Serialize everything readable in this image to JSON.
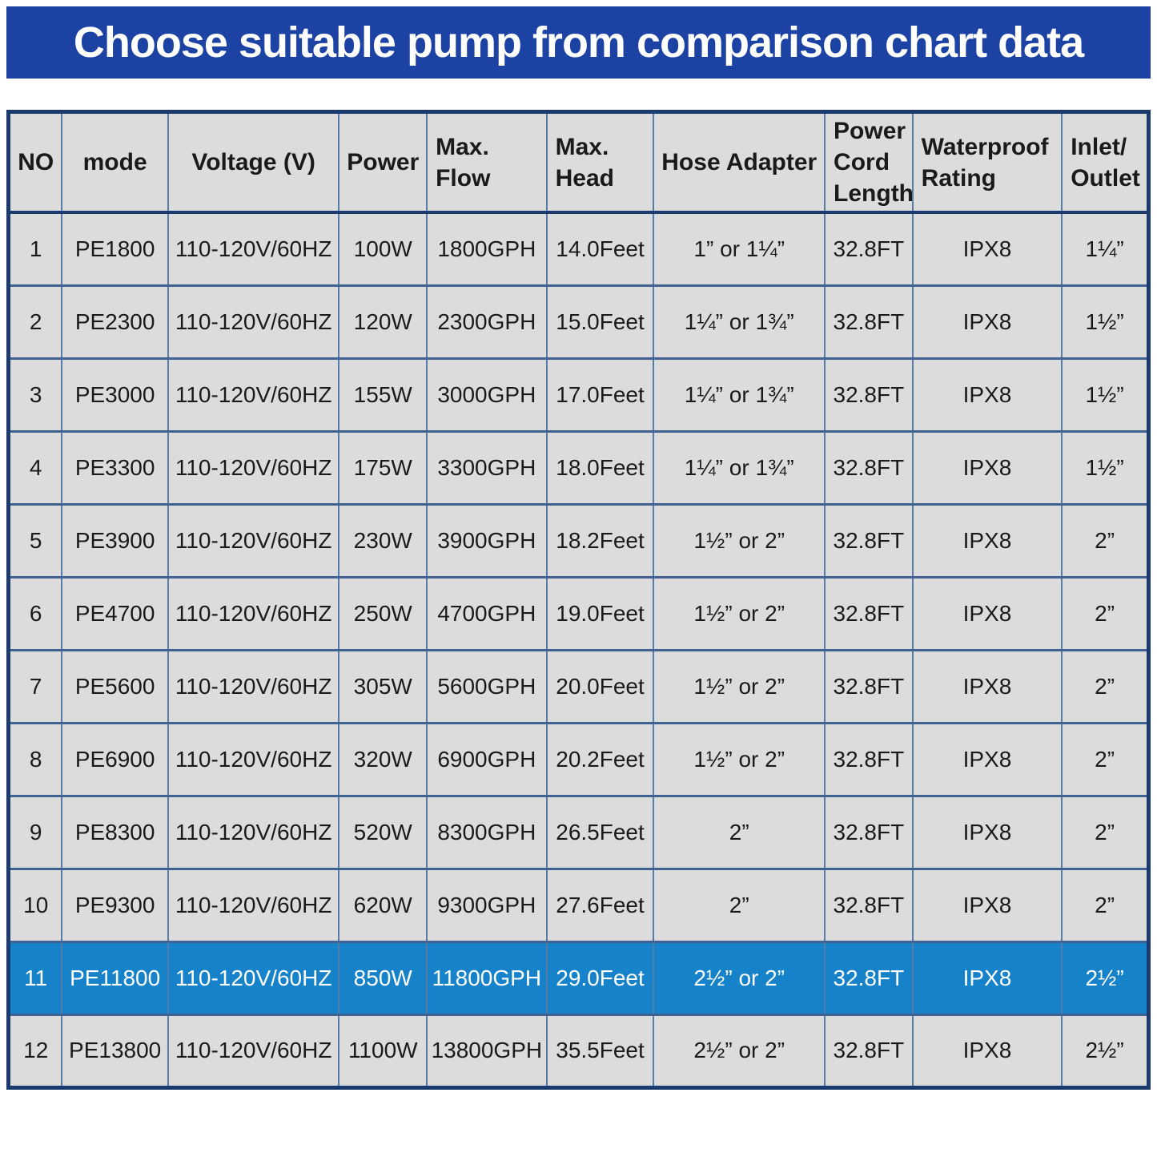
{
  "banner": {
    "bg_color": "#1c42a4",
    "text_color": "#ffffff"
  },
  "chart_data": {
    "type": "table",
    "title": "Choose suitable pump from comparison chart data",
    "column_keys": [
      "no",
      "mode",
      "voltage",
      "power",
      "max-flow",
      "max-head",
      "hose-adapter",
      "power-cord-length",
      "waterproof-rating",
      "inlet-outlet"
    ],
    "columns": [
      "NO",
      "mode",
      "Voltage (V)",
      "Power",
      "Max.\nFlow",
      "Max.\nHead",
      "Hose Adapter",
      "Power\nCord\nLength",
      "Waterproof\nRating",
      "Inlet/\nOutlet"
    ],
    "rows": [
      {
        "highlighted": false,
        "cells": [
          "1",
          "PE1800",
          "110-120V/60HZ",
          "100W",
          "1800GPH",
          "14.0Feet",
          "1” or 1¼”",
          "32.8FT",
          "IPX8",
          "1¼”"
        ]
      },
      {
        "highlighted": false,
        "cells": [
          "2",
          "PE2300",
          "110-120V/60HZ",
          "120W",
          "2300GPH",
          "15.0Feet",
          "1¼” or 1¾”",
          "32.8FT",
          "IPX8",
          "1½”"
        ]
      },
      {
        "highlighted": false,
        "cells": [
          "3",
          "PE3000",
          "110-120V/60HZ",
          "155W",
          "3000GPH",
          "17.0Feet",
          "1¼” or 1¾”",
          "32.8FT",
          "IPX8",
          "1½”"
        ]
      },
      {
        "highlighted": false,
        "cells": [
          "4",
          "PE3300",
          "110-120V/60HZ",
          "175W",
          "3300GPH",
          "18.0Feet",
          "1¼” or 1¾”",
          "32.8FT",
          "IPX8",
          "1½”"
        ]
      },
      {
        "highlighted": false,
        "cells": [
          "5",
          "PE3900",
          "110-120V/60HZ",
          "230W",
          "3900GPH",
          "18.2Feet",
          "1½” or 2”",
          "32.8FT",
          "IPX8",
          "2”"
        ]
      },
      {
        "highlighted": false,
        "cells": [
          "6",
          "PE4700",
          "110-120V/60HZ",
          "250W",
          "4700GPH",
          "19.0Feet",
          "1½” or 2”",
          "32.8FT",
          "IPX8",
          "2”"
        ]
      },
      {
        "highlighted": false,
        "cells": [
          "7",
          "PE5600",
          "110-120V/60HZ",
          "305W",
          "5600GPH",
          "20.0Feet",
          "1½” or 2”",
          "32.8FT",
          "IPX8",
          "2”"
        ]
      },
      {
        "highlighted": false,
        "cells": [
          "8",
          "PE6900",
          "110-120V/60HZ",
          "320W",
          "6900GPH",
          "20.2Feet",
          "1½” or 2”",
          "32.8FT",
          "IPX8",
          "2”"
        ]
      },
      {
        "highlighted": false,
        "cells": [
          "9",
          "PE8300",
          "110-120V/60HZ",
          "520W",
          "8300GPH",
          "26.5Feet",
          "2”",
          "32.8FT",
          "IPX8",
          "2”"
        ]
      },
      {
        "highlighted": false,
        "cells": [
          "10",
          "PE9300",
          "110-120V/60HZ",
          "620W",
          "9300GPH",
          "27.6Feet",
          "2”",
          "32.8FT",
          "IPX8",
          "2”"
        ]
      },
      {
        "highlighted": true,
        "cells": [
          "11",
          "PE11800",
          "110-120V/60HZ",
          "850W",
          "11800GPH",
          "29.0Feet",
          "2½” or 2”",
          "32.8FT",
          "IPX8",
          "2½”"
        ]
      },
      {
        "highlighted": false,
        "cells": [
          "12",
          "PE13800",
          "110-120V/60HZ",
          "1100W",
          "13800GPH",
          "35.5Feet",
          "2½” or 2”",
          "32.8FT",
          "IPX8",
          "2½”"
        ]
      }
    ],
    "colors": {
      "banner_bg": "#1c42a4",
      "cell_bg": "#dcdcdc",
      "highlight_row_bg": "#1682ca",
      "highlight_text": "#ffffff",
      "grid_vertical": "#567ca8",
      "grid_horizontal": "#3f6292",
      "outer_border": "#1b3a6e",
      "text": "#1a1a1a"
    },
    "layout": {
      "legend": "none",
      "grid": "on",
      "highlighted_row_index": 10
    }
  }
}
